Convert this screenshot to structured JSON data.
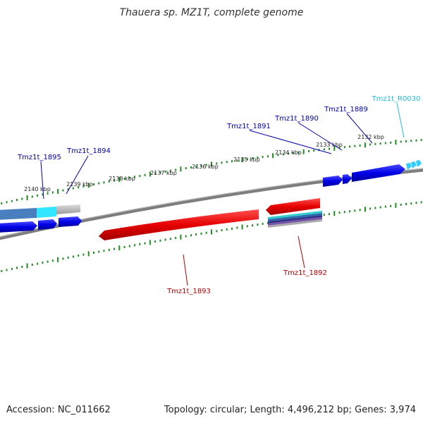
{
  "title": "Thauera sp. MZ1T, complete genome",
  "footer": {
    "accession": "Accession: NC_011662",
    "summary": "Topology: circular; Length: 4,496,212 bp; Genes: 3,974"
  },
  "colors": {
    "backbone": "#7d7d7d",
    "forward_gene": "#0000e6",
    "reverse_gene": "#e60000",
    "rna_feature": "#33ccff",
    "tick": "#228b22",
    "label_blue": "#0000aa",
    "label_red": "#b00000",
    "label_cyan": "#22bbdd"
  },
  "scale_labels": [
    "2140 kbp",
    "2139 kbp",
    "2138 kbp",
    "2137 kbp",
    "2136 kbp",
    "2135 kbp",
    "2134 kbp",
    "2133 kbp",
    "2132 kbp"
  ],
  "gene_labels": [
    {
      "id": "Tmz1t_1895",
      "strand": "forward"
    },
    {
      "id": "Tmz1t_1894",
      "strand": "forward"
    },
    {
      "id": "Tmz1t_1891",
      "strand": "forward"
    },
    {
      "id": "Tmz1t_1890",
      "strand": "forward"
    },
    {
      "id": "Tmz1t_1889",
      "strand": "forward"
    },
    {
      "id": "Tmz1t_R0030",
      "strand": "rna"
    },
    {
      "id": "Tmz1t_1893",
      "strand": "reverse"
    },
    {
      "id": "Tmz1t_1892",
      "strand": "reverse"
    }
  ]
}
